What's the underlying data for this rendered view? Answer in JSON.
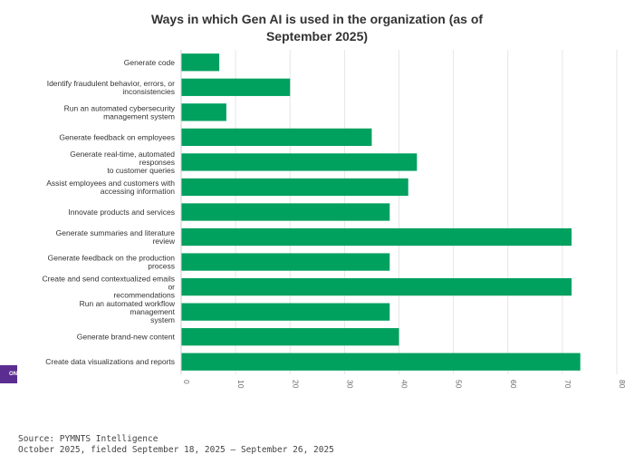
{
  "chart_data": {
    "type": "bar",
    "orientation": "horizontal",
    "title": "Ways in which Gen AI is used in the organization (as of September 2025)",
    "categories": [
      "Generate code",
      "Identify fraudulent behavior, errors, or inconsistencies",
      "Run an automated cybersecurity management system",
      "Generate feedback on employees",
      "Generate real-time, automated responses to customer queries",
      "Assist employees and customers with accessing information",
      "Innovate products and services",
      "Generate summaries and literature review",
      "Generate feedback on the production process",
      "Create and send contextualized emails or recommendations",
      "Run an automated workflow management system",
      "Generate brand-new content",
      "Create data visualizations and reports"
    ],
    "category_lines": [
      [
        "Generate code"
      ],
      [
        "Identify fraudulent behavior, errors, or",
        "inconsistencies"
      ],
      [
        "Run an automated cybersecurity",
        "management system"
      ],
      [
        "Generate feedback on employees"
      ],
      [
        "Generate real-time, automated",
        "responses",
        "to customer queries"
      ],
      [
        "Assist employees and customers with",
        "accessing information"
      ],
      [
        "Innovate products and services"
      ],
      [
        "Generate summaries and literature",
        "review"
      ],
      [
        "Generate feedback on the production",
        "process"
      ],
      [
        "Create and send contextualized emails",
        "or",
        "recommendations"
      ],
      [
        "Run an automated workflow",
        "management",
        "system"
      ],
      [
        "Generate brand-new content"
      ],
      [
        "Create data visualizations and reports"
      ]
    ],
    "values": [
      7,
      20,
      8.3,
      35,
      43.3,
      41.7,
      38.3,
      71.7,
      38.3,
      71.7,
      38.3,
      40,
      73.3
    ],
    "xlim": [
      0,
      80
    ],
    "xticks": [
      0,
      10,
      20,
      30,
      40,
      50,
      60,
      70,
      80
    ],
    "grid": true,
    "bar_color": "#00a05f",
    "xlabel": "",
    "ylabel": ""
  },
  "badge_text": "ON",
  "footer": {
    "source": "Source: PYMNTS Intelligence",
    "fielded": "October 2025, fielded September 18, 2025 – September 26, 2025"
  },
  "colors": {
    "brand": "#5b2d91",
    "bar": "#00a05f",
    "grid": "#e6e6e6"
  }
}
